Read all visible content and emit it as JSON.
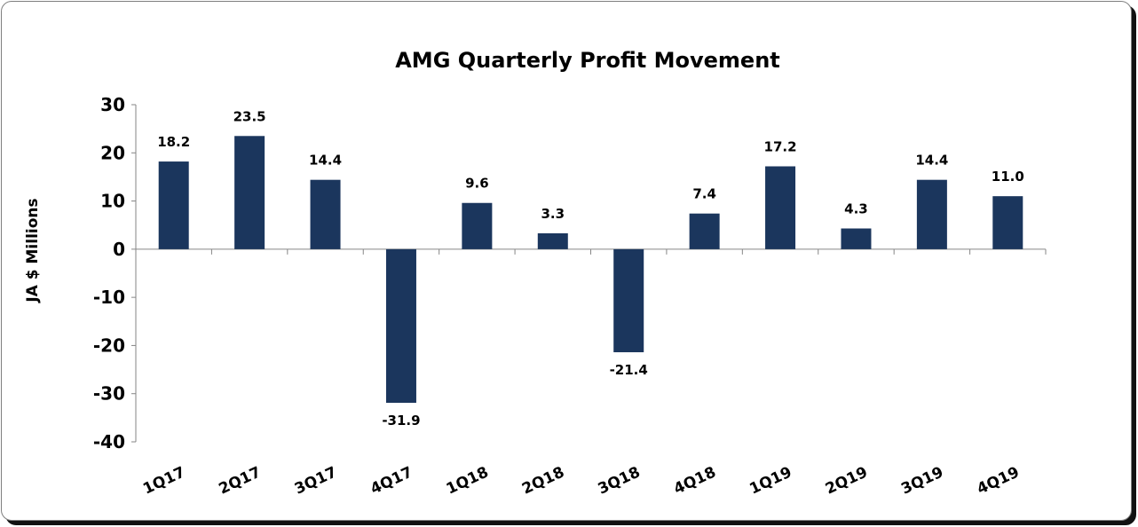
{
  "chart_data": {
    "type": "bar",
    "title": "AMG Quarterly Profit Movement",
    "xlabel": "",
    "ylabel": "JA $ Millions",
    "categories": [
      "1Q17",
      "2Q17",
      "3Q17",
      "4Q17",
      "1Q18",
      "2Q18",
      "3Q18",
      "4Q18",
      "1Q19",
      "2Q19",
      "3Q19",
      "4Q19"
    ],
    "values": [
      18.2,
      23.5,
      14.4,
      -31.9,
      9.6,
      3.3,
      -21.4,
      7.4,
      17.2,
      4.3,
      14.4,
      11.0
    ],
    "ylim": [
      -40,
      30
    ],
    "yticks": [
      30,
      20,
      10,
      0,
      -10,
      -20,
      -30,
      -40
    ],
    "grid": false,
    "legend": "none",
    "bar_color": "#1b365d"
  }
}
